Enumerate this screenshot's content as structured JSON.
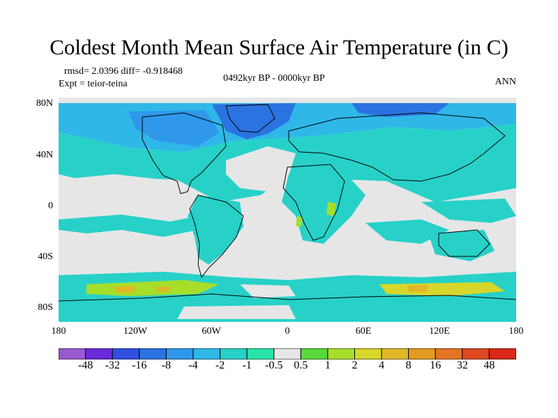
{
  "title": "Coldest Month Mean Surface Air Temperature (in C)",
  "stats": "rmsd= 2.0396 diff= -0.918468",
  "experiment": "Expt = teior-teina",
  "period": "0492kyr BP - 0000kyr BP",
  "season": "ANN",
  "lat_labels": [
    "80N",
    "40N",
    "0",
    "40S",
    "80S"
  ],
  "lon_labels": [
    "180",
    "120W",
    "60W",
    "0",
    "60E",
    "120E",
    "180"
  ],
  "colorbar": {
    "levels": [
      "-48",
      "-32",
      "-16",
      "-8",
      "-4",
      "-2",
      "-1",
      "-0.5",
      "0.5",
      "1",
      "2",
      "4",
      "8",
      "16",
      "32",
      "48"
    ],
    "colors": [
      "#9b59d0",
      "#6a2bd9",
      "#2f4fe0",
      "#2a73e0",
      "#2f98ea",
      "#2fb7e8",
      "#27d1c8",
      "#27e3a8",
      "#e6e6e6",
      "#58d83a",
      "#a6de2a",
      "#d7d62a",
      "#e0b826",
      "#e39a22",
      "#e47422",
      "#e0481f",
      "#d9281a"
    ]
  }
}
